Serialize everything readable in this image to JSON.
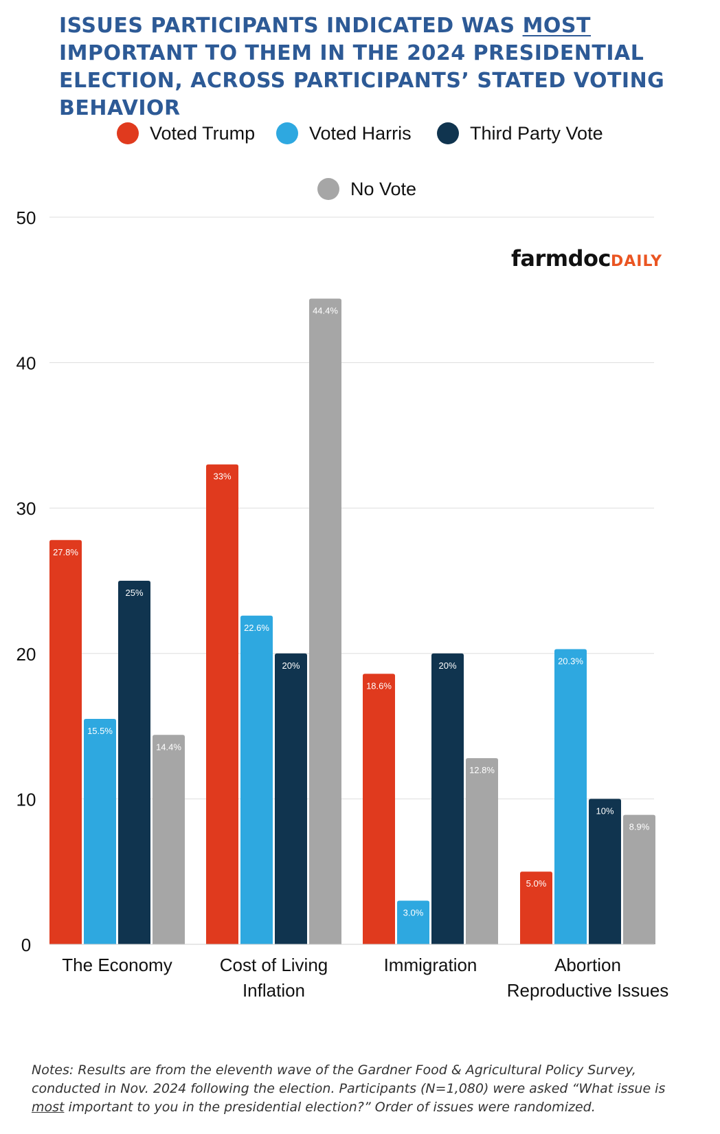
{
  "title": {
    "part1": "Issues participants indicated was ",
    "emphasis": "MOST",
    "part2": " important to them in the 2024 presidential election, across participants’ stated voting behavior"
  },
  "logo": {
    "part1": "farmdoc",
    "part2": "DAILY"
  },
  "notes": {
    "part1": "Notes: Results are from the eleventh wave of the Gardner Food & Agricultural Policy Survey, conducted in Nov. 2024 following the election. Participants (N=1,080) were asked “What issue is ",
    "emphasis": "most",
    "part2": " important to you in the presidential election?” Order of issues were randomized."
  },
  "colors": {
    "title": "#2d5a96",
    "trump": "#e03a1e",
    "harris": "#2ea8e0",
    "third_party": "#10344f",
    "no_vote": "#a6a6a6",
    "gridline": "#dddddd",
    "logo_accent": "#ea5522"
  },
  "chart_data": {
    "type": "bar",
    "categories": [
      "The Economy",
      "Cost of Living Inflation",
      "Immigration",
      "Abortion Reproductive Issues"
    ],
    "category_label_lines": [
      [
        "The Economy"
      ],
      [
        "Cost of Living",
        "Inflation"
      ],
      [
        "Immigration"
      ],
      [
        "Abortion",
        "Reproductive Issues"
      ]
    ],
    "series": [
      {
        "name": "Voted Trump",
        "color": "#e03a1e",
        "values": [
          27.8,
          33,
          18.6,
          5.0
        ],
        "labels": [
          "27.8%",
          "33%",
          "18.6%",
          "5.0%"
        ]
      },
      {
        "name": "Voted Harris",
        "color": "#2ea8e0",
        "values": [
          15.5,
          22.6,
          3.0,
          20.3
        ],
        "labels": [
          "15.5%",
          "22.6%",
          "3.0%",
          "20.3%"
        ]
      },
      {
        "name": "Third Party Vote",
        "color": "#10344f",
        "values": [
          25,
          20,
          20,
          10
        ],
        "labels": [
          "25%",
          "20%",
          "20%",
          "10%"
        ]
      },
      {
        "name": "No Vote",
        "color": "#a6a6a6",
        "values": [
          14.4,
          44.4,
          12.8,
          8.9
        ],
        "labels": [
          "14.4%",
          "44.4%",
          "12.8%",
          "8.9%"
        ]
      }
    ],
    "ylim": [
      0,
      50
    ],
    "yticks": [
      0,
      10,
      20,
      30,
      40,
      50
    ],
    "grid": true,
    "legend_position": "top-center",
    "title": "Issues participants indicated was MOST important to them in the 2024 presidential election, across participants’ stated voting behavior",
    "xlabel": "",
    "ylabel": ""
  }
}
